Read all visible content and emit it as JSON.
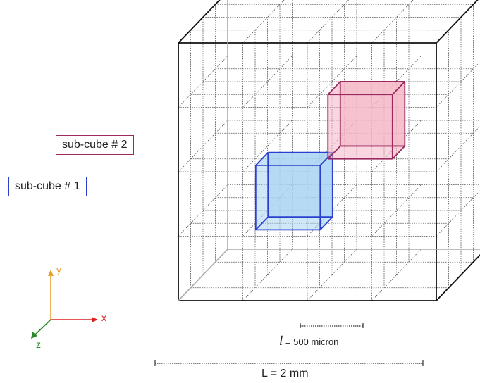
{
  "labels": {
    "sub_cube_2": "sub-cube # 2",
    "sub_cube_1": "sub-cube # 1"
  },
  "measurements": {
    "small_symbol": "l",
    "small_value": " = 500 micron",
    "big": "L = 2 mm"
  },
  "axes": {
    "x": "x",
    "y": "y",
    "z": "z"
  },
  "colors": {
    "sub_cube_2_stroke": "#9a2a5e",
    "sub_cube_2_fill": "#f6b7c6",
    "sub_cube_1_stroke": "#2a3fd0",
    "sub_cube_1_fill": "#a9d4f3",
    "x_axis": "#e02020",
    "y_axis": "#e8a030",
    "z_axis": "#2a8a2a"
  }
}
